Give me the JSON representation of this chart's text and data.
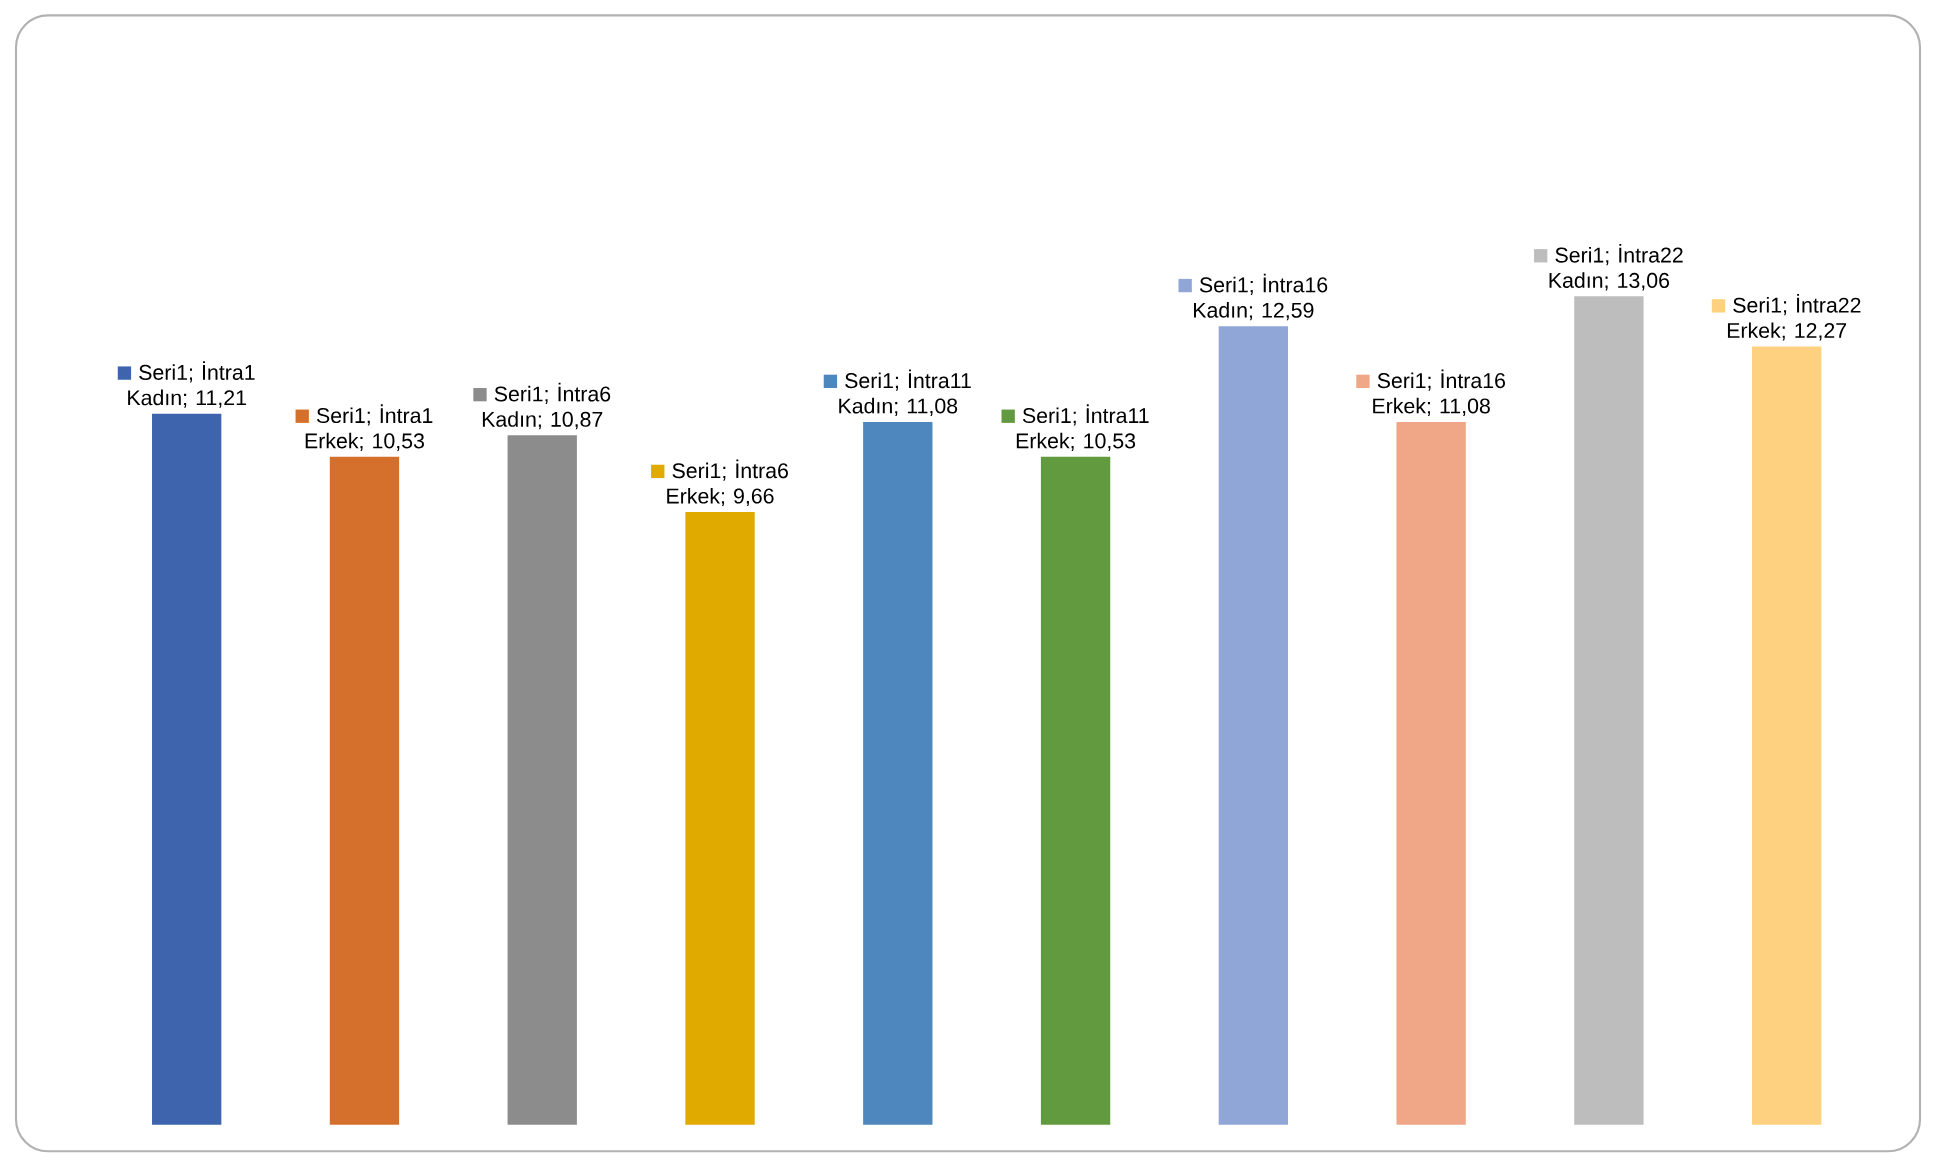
{
  "chart_data": {
    "type": "bar",
    "categories": [
      null,
      null,
      null,
      null,
      null,
      null,
      null,
      null,
      null,
      null
    ],
    "series": [
      {
        "values": [
          11.21,
          10.53,
          10.87,
          9.66,
          11.08,
          10.53,
          12.59,
          11.08,
          13.06,
          12.27
        ],
        "value_labels": [
          "Seri1; İntra1 Kadın; 11,21",
          "Seri1; İntra1 Erkek; 10,53",
          "Seri1; İntra6 Kadın; 10,87",
          "Seri1; İntra6 Erkek; 9,66",
          "Seri1; İntra11 Kadın; 11,08",
          "Seri1; İntra11 Erkek; 10,53",
          "Seri1; İntra16 Kadın; 12,59",
          "Seri1; İntra16 Erkek; 11,08",
          "Seri1; İntra22 Kadın; 13,06",
          "Seri1; İntra22 Erkek; 12,27"
        ],
        "colors": [
          "#3e64ad",
          "#d4702c",
          "#8c8c8c",
          "#e0aa00",
          "#4e86be",
          "#629a3f",
          "#8fa6d6",
          "#f0a788",
          "#bdbdbd",
          "#fdd17f"
        ]
      }
    ]
  }
}
